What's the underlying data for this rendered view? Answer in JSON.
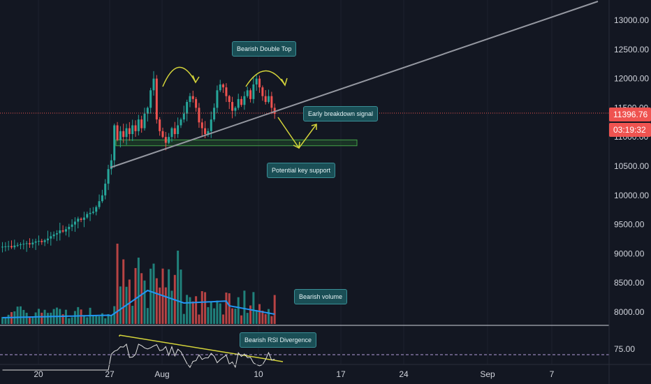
{
  "price_axis": {
    "labels": [
      "13000.00",
      "12500.00",
      "12000.00",
      "11500.00",
      "11000.00",
      "10500.00",
      "10000.00",
      "9500.00",
      "9000.00",
      "8500.00",
      "8000.00"
    ],
    "values": [
      13000,
      12500,
      12000,
      11500,
      11000,
      10500,
      10000,
      9500,
      9000,
      8500,
      8000
    ]
  },
  "time_axis": {
    "labels": [
      "20",
      "27",
      "Aug",
      "10",
      "17",
      "24",
      "Sep",
      "7"
    ]
  },
  "current_price": "11396.76",
  "countdown": "03:19:32",
  "rsi_axis": {
    "label": "75.00"
  },
  "annotations": {
    "double_top": "Bearish Double Top",
    "breakdown": "Early breakdown signal",
    "support": "Potential key support",
    "volume": "Bearish volume",
    "rsi": "Bearish RSI Divergence"
  },
  "colors": {
    "background": "#131722",
    "bull": "#26a69a",
    "bear": "#ef5350",
    "volume_ma": "#2196f3",
    "trendline": "#9598a1",
    "drawing": "#c8c832",
    "support_zone": "#2e7d32",
    "callout": "#1a4e55"
  },
  "chart_data": {
    "type": "candlestick",
    "price_scale": {
      "min": 7700,
      "max": 13300
    },
    "current_price": 11396.76,
    "support_zone": [
      10850,
      10950
    ],
    "candles_close": [
      9120,
      9125,
      9130,
      9110,
      9140,
      9150,
      9160,
      9170,
      9180,
      9160,
      9190,
      9210,
      9220,
      9200,
      9230,
      9260,
      9300,
      9330,
      9350,
      9400,
      9380,
      9420,
      9460,
      9500,
      9550,
      9600,
      9580,
      9620,
      9680,
      9700,
      9720,
      9800,
      9900,
      10000,
      10200,
      10450,
      10600,
      11200,
      10950,
      11100,
      11000,
      11150,
      11050,
      11200,
      11100,
      11300,
      11150,
      11400,
      11500,
      11800,
      12000,
      11300,
      11100,
      11000,
      10900,
      11000,
      11150,
      11050,
      11200,
      11300,
      11400,
      11600,
      11700,
      11650,
      11500,
      11250,
      11150,
      11050,
      11100,
      11300,
      11500,
      11800,
      11900,
      11850,
      11700,
      11600,
      11450,
      11500,
      11650,
      11550,
      11700,
      11800,
      11650,
      11900,
      12000,
      11850,
      11700,
      11600,
      11700,
      11500,
      11396.76
    ],
    "volume_ma_trend": [
      "flat",
      "rising",
      "falling",
      "flat"
    ],
    "rsi_overbought": 70
  }
}
